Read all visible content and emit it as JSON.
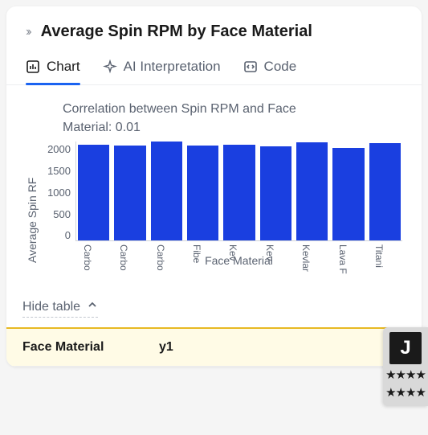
{
  "header": {
    "title": "Average Spin RPM by Face Material"
  },
  "tabs": {
    "chart": "Chart",
    "ai": "AI Interpretation",
    "code": "Code"
  },
  "chart": {
    "type": "bar",
    "title_line1": "Correlation between Spin RPM and Face",
    "title_line2": "Material: 0.01",
    "y_label": "Average Spin RF",
    "x_label": "Face Material",
    "ylim": [
      0,
      2000
    ],
    "y_ticks": [
      "2000",
      "1500",
      "1000",
      "500",
      "0"
    ],
    "categories": [
      "Carbo",
      "Carbo",
      "Carbo",
      "Fibe",
      "Kev",
      "Kev",
      "Kevlar",
      "Lava F",
      "Titani"
    ],
    "values": [
      1940,
      1930,
      2000,
      1920,
      1940,
      1910,
      1990,
      1870,
      1980
    ],
    "bar_color": "#1a3fe0",
    "grid_color": "#d0d4d9",
    "background_color": "#ffffff",
    "tick_fontsize": 13,
    "label_fontsize": 14,
    "title_fontsize": 16
  },
  "table": {
    "toggle_label": "Hide table",
    "columns": [
      "Face Material",
      "y1"
    ]
  },
  "side_widget": {
    "badge": "J",
    "stars": "★★★★",
    "stars2": "★★★★"
  },
  "colors": {
    "accent": "#1a63f1",
    "table_highlight_bg": "#fffbe6",
    "table_highlight_border": "#e8b923"
  }
}
